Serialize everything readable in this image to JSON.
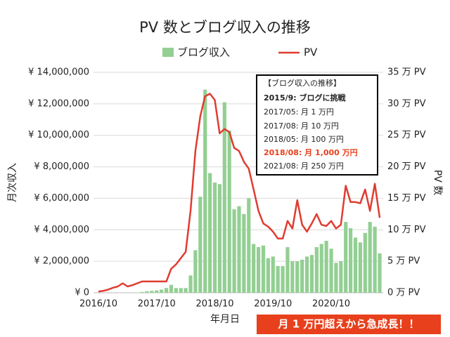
{
  "chart_data": {
    "type": "bar_line",
    "title": "PV 数とブログ収入の推移",
    "xlabel": "年月日",
    "ylabel": "月次収入",
    "y2label": "PV 数",
    "categories": [
      "2016/10",
      null,
      null,
      null,
      null,
      null,
      null,
      null,
      null,
      null,
      null,
      null,
      "2017/10",
      null,
      null,
      null,
      null,
      null,
      null,
      null,
      null,
      null,
      null,
      null,
      "2018/10",
      null,
      null,
      null,
      null,
      null,
      null,
      null,
      null,
      null,
      null,
      null,
      "2019/10",
      null,
      null,
      null,
      null,
      null,
      null,
      null,
      null,
      null,
      null,
      null,
      "2020/10",
      null,
      null,
      null,
      null,
      null,
      null,
      null,
      null,
      null,
      null
    ],
    "series": [
      {
        "name": "ブログ収入",
        "type": "bar",
        "color": "#93cf93",
        "values": [
          0,
          0,
          0,
          0,
          0,
          0,
          0,
          10000,
          20000,
          50000,
          100000,
          120000,
          150000,
          200000,
          300000,
          500000,
          300000,
          300000,
          300000,
          1100000,
          2700000,
          6100000,
          12900000,
          7600000,
          7000000,
          6900000,
          12100000,
          10300000,
          5300000,
          5500000,
          5000000,
          6000000,
          3100000,
          2900000,
          3000000,
          2200000,
          2300000,
          1700000,
          1700000,
          2900000,
          2000000,
          2000000,
          2100000,
          2300000,
          2400000,
          2900000,
          3100000,
          3300000,
          2800000,
          1900000,
          2000000,
          4500000,
          4100000,
          3500000,
          3200000,
          3800000,
          4500000,
          4200000,
          2500000
        ]
      },
      {
        "name": "PV",
        "type": "line",
        "axis": "y2",
        "color": "#e03c31",
        "values": [
          0.2,
          0.3,
          0.5,
          0.8,
          1.0,
          1.5,
          1.0,
          1.2,
          1.5,
          1.8,
          1.8,
          1.8,
          1.8,
          1.8,
          1.8,
          3.8,
          4.5,
          5.5,
          6.5,
          13,
          22.5,
          28,
          31.2,
          31.6,
          30.6,
          25.3,
          26,
          25.5,
          23,
          22.5,
          20.8,
          19.7,
          16.4,
          13,
          11,
          10.5,
          9.7,
          8.6,
          8.6,
          11.4,
          10.2,
          14.7,
          10.8,
          9.7,
          11,
          12.5,
          10.8,
          10.6,
          11.4,
          10.2,
          10.8,
          17,
          14.4,
          14.4,
          14.2,
          16.4,
          13,
          17.3,
          11.9
        ]
      }
    ],
    "ylim": [
      0,
      14000000
    ],
    "yticks": [
      {
        "value": 0,
        "label": "¥ 0"
      },
      {
        "value": 2000000,
        "label": "¥ 2,000,000"
      },
      {
        "value": 4000000,
        "label": "¥ 4,000,000"
      },
      {
        "value": 6000000,
        "label": "¥ 6,000,000"
      },
      {
        "value": 8000000,
        "label": "¥ 8,000,000"
      },
      {
        "value": 10000000,
        "label": "¥ 10,000,000"
      },
      {
        "value": 12000000,
        "label": "¥ 12,000,000"
      },
      {
        "value": 14000000,
        "label": "¥ 14,000,000"
      }
    ],
    "y2lim": [
      0,
      35
    ],
    "y2ticks": [
      {
        "value": 0,
        "label": "0 万 PV"
      },
      {
        "value": 5,
        "label": "5 万 PV"
      },
      {
        "value": 10,
        "label": "10 万 PV"
      },
      {
        "value": 15,
        "label": "15 万 PV"
      },
      {
        "value": 20,
        "label": "20 万 PV"
      },
      {
        "value": 25,
        "label": "25 万 PV"
      },
      {
        "value": 30,
        "label": "30 万 PV"
      },
      {
        "value": 35,
        "label": "35 万 PV"
      }
    ],
    "grid": true,
    "annotation": {
      "title": "【ブログ収入の推移】",
      "lines": [
        "2015/9: ブログに挑戦",
        "2017/05: 月 1 万円",
        "2017/08: 月 10 万円",
        "2018/05: 月 100 万円",
        "2018/08: 月 1,000 万円",
        "2021/08: 月 250 万円"
      ]
    },
    "callout": "月 1 万円超えから急成長！！"
  }
}
